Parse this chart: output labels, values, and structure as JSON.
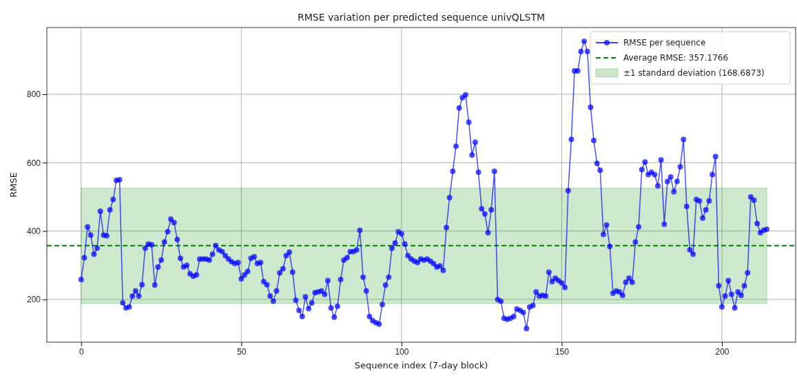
{
  "chart_data": {
    "type": "line",
    "title": "RMSE variation per predicted sequence univQLSTM",
    "xlabel": "Sequence index (7-day block)",
    "ylabel": "RMSE",
    "xlim": [
      -10.7,
      223
    ],
    "ylim": [
      75,
      995
    ],
    "xticks": [
      0,
      50,
      100,
      150,
      200
    ],
    "yticks": [
      200,
      400,
      600,
      800
    ],
    "grid": true,
    "legend": "top right",
    "marker": "circle",
    "line_style": "solid",
    "x": [
      0,
      1,
      2,
      3,
      4,
      5,
      6,
      7,
      8,
      9,
      10,
      11,
      12,
      13,
      14,
      15,
      16,
      17,
      18,
      19,
      20,
      21,
      22,
      23,
      24,
      25,
      26,
      27,
      28,
      29,
      30,
      31,
      32,
      33,
      34,
      35,
      36,
      37,
      38,
      39,
      40,
      41,
      42,
      43,
      44,
      45,
      46,
      47,
      48,
      49,
      50,
      51,
      52,
      53,
      54,
      55,
      56,
      57,
      58,
      59,
      60,
      61,
      62,
      63,
      64,
      65,
      66,
      67,
      68,
      69,
      70,
      71,
      72,
      73,
      74,
      75,
      76,
      77,
      78,
      79,
      80,
      81,
      82,
      83,
      84,
      85,
      86,
      87,
      88,
      89,
      90,
      91,
      92,
      93,
      94,
      95,
      96,
      97,
      98,
      99,
      100,
      101,
      102,
      103,
      104,
      105,
      106,
      107,
      108,
      109,
      110,
      111,
      112,
      113,
      114,
      115,
      116,
      117,
      118,
      119,
      120,
      121,
      122,
      123,
      124,
      125,
      126,
      127,
      128,
      129,
      130,
      131,
      132,
      133,
      134,
      135,
      136,
      137,
      138,
      139,
      140,
      141,
      142,
      143,
      144,
      145,
      146,
      147,
      148,
      149,
      150,
      151,
      152,
      153,
      154,
      155,
      156,
      157,
      158,
      159,
      160,
      161,
      162,
      163,
      164,
      165,
      166,
      167,
      168,
      169,
      170,
      171,
      172,
      173,
      174,
      175,
      176,
      177,
      178,
      179,
      180,
      181,
      182,
      183,
      184,
      185,
      186,
      187,
      188,
      189,
      190,
      191,
      192,
      193,
      194,
      195,
      196,
      197,
      198,
      199,
      200,
      201,
      202,
      203,
      204,
      205,
      206,
      207,
      208,
      209,
      210,
      211,
      212,
      213,
      214
    ],
    "series": [
      {
        "name": "RMSE per sequence",
        "color": "#0000ff",
        "values": [
          258,
          322,
          412,
          388,
          332,
          350,
          458,
          388,
          386,
          462,
          492,
          548,
          550,
          190,
          175,
          178,
          210,
          225,
          210,
          243,
          350,
          362,
          360,
          242,
          295,
          315,
          368,
          398,
          435,
          425,
          375,
          320,
          295,
          300,
          275,
          268,
          272,
          318,
          318,
          318,
          315,
          332,
          358,
          345,
          340,
          328,
          318,
          310,
          305,
          308,
          260,
          272,
          282,
          320,
          325,
          305,
          308,
          252,
          243,
          210,
          195,
          225,
          278,
          290,
          328,
          338,
          280,
          198,
          168,
          150,
          208,
          173,
          190,
          220,
          222,
          225,
          215,
          255,
          175,
          148,
          180,
          258,
          315,
          322,
          340,
          340,
          345,
          402,
          265,
          225,
          150,
          138,
          132,
          128,
          185,
          242,
          265,
          350,
          365,
          398,
          392,
          362,
          328,
          318,
          312,
          308,
          318,
          315,
          318,
          312,
          305,
          295,
          298,
          285,
          410,
          498,
          575,
          648,
          760,
          790,
          798,
          718,
          622,
          660,
          572,
          465,
          450,
          395,
          462,
          575,
          200,
          195,
          145,
          142,
          145,
          150,
          172,
          168,
          162,
          115,
          178,
          182,
          222,
          210,
          212,
          210,
          280,
          252,
          262,
          255,
          248,
          235,
          518,
          668,
          868,
          868,
          925,
          955,
          925,
          762,
          665,
          598,
          578,
          390,
          418,
          355,
          218,
          225,
          222,
          212,
          250,
          262,
          250,
          368,
          412,
          580,
          602,
          565,
          572,
          565,
          532,
          608,
          420,
          545,
          558,
          515,
          545,
          588,
          668,
          472,
          345,
          332,
          492,
          488,
          438,
          462,
          488,
          565,
          618,
          240,
          178,
          210,
          255,
          215,
          175,
          222,
          212,
          240,
          278,
          500,
          490,
          422,
          395,
          402,
          405
        ]
      }
    ],
    "ref_lines": [
      {
        "axis": "y",
        "value": 357.1766,
        "label": "Average RMSE: 357.1766",
        "color": "#008000",
        "line_style": "dashed"
      }
    ],
    "bands": [
      {
        "axis": "y",
        "from": 188.4893,
        "to": 525.8639,
        "label": "±1 standard deviation (168.6873)",
        "color": "#2ca02c"
      }
    ]
  }
}
